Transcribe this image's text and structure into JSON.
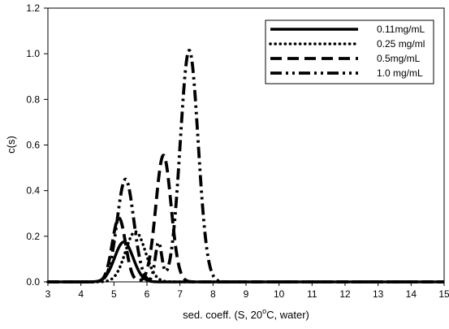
{
  "chart_data": {
    "type": "line",
    "title": "",
    "xlabel_main": "sed. coeff. (S, 20",
    "xlabel_sup": "o",
    "xlabel_tail": "C, water)",
    "ylabel": "c(s)",
    "xlim": [
      3,
      15
    ],
    "ylim": [
      0,
      1.2
    ],
    "xticks": [
      3,
      4,
      5,
      6,
      7,
      8,
      9,
      10,
      11,
      12,
      13,
      14,
      15
    ],
    "xtick_labels": [
      "3",
      "4",
      "5",
      "6",
      "7",
      "8",
      "9",
      "10",
      "11",
      "12",
      "13",
      "14",
      "15"
    ],
    "yticks": [
      0.0,
      0.2,
      0.4,
      0.6,
      0.8,
      1.0,
      1.2
    ],
    "ytick_labels": [
      "0.0",
      "0.2",
      "0.4",
      "0.6",
      "0.8",
      "1.0",
      "1.2"
    ],
    "legend_position": "top-right",
    "grid": false,
    "series": [
      {
        "name": "0.11mg/mL",
        "style": "solid",
        "peaks": [
          {
            "center": 5.3,
            "height": 0.175,
            "sigma": 0.28
          }
        ]
      },
      {
        "name": "0.25 mg/ml",
        "style": "dotted",
        "peaks": [
          {
            "center": 5.65,
            "height": 0.22,
            "sigma": 0.3
          }
        ]
      },
      {
        "name": "0.5mg/mL",
        "style": "dashed",
        "peaks": [
          {
            "center": 5.15,
            "height": 0.28,
            "sigma": 0.2
          },
          {
            "center": 6.5,
            "height": 0.555,
            "sigma": 0.23
          }
        ]
      },
      {
        "name": "1.0 mg/mL",
        "style": "dashdotdot",
        "peaks": [
          {
            "center": 5.35,
            "height": 0.45,
            "sigma": 0.25
          },
          {
            "center": 6.35,
            "height": 0.17,
            "sigma": 0.1
          },
          {
            "center": 7.28,
            "height": 1.015,
            "sigma": 0.27
          }
        ]
      }
    ]
  }
}
